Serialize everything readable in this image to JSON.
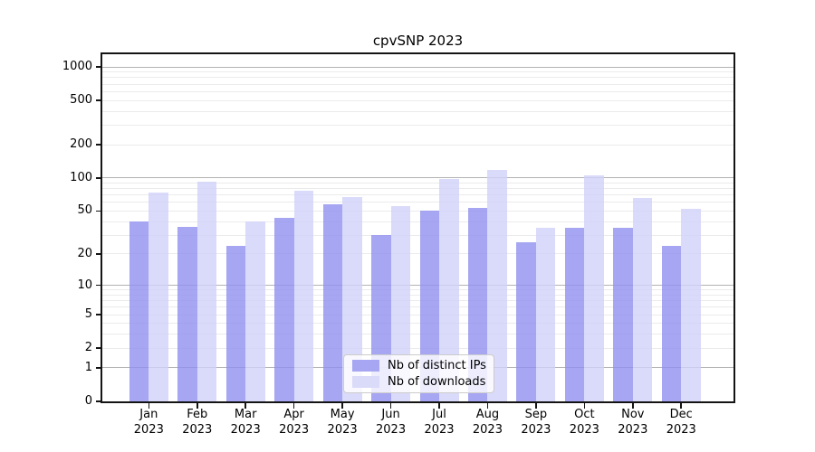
{
  "chart_data": {
    "type": "bar",
    "title": "cpvSNP 2023",
    "categories": [
      "Jan",
      "Feb",
      "Mar",
      "Apr",
      "May",
      "Jun",
      "Jul",
      "Aug",
      "Sep",
      "Oct",
      "Nov",
      "Dec"
    ],
    "year_label": "2023",
    "series": [
      {
        "name": "Nb of distinct IPs",
        "color": "#a6a6f2",
        "color_rgba": "rgba(144,144,239,0.8)",
        "values": [
          40,
          36,
          24,
          43,
          58,
          30,
          50,
          53,
          26,
          35,
          35,
          24
        ]
      },
      {
        "name": "Nb of downloads",
        "color": "#dadaf9",
        "color_rgba": "rgba(209,209,249,0.8)",
        "values": [
          74,
          93,
          40,
          76,
          67,
          55,
          98,
          118,
          35,
          105,
          66,
          52
        ]
      }
    ],
    "y_ticks": [
      0,
      1,
      2,
      5,
      10,
      20,
      50,
      100,
      200,
      500,
      1000
    ],
    "scale": "log1p",
    "ylim": [
      0,
      1300
    ],
    "grid": true,
    "grid_major_color": "#b3b3b3",
    "grid_minor_color": "#ebebeb",
    "legend_position": "lower center",
    "xlabel": "",
    "ylabel": ""
  }
}
